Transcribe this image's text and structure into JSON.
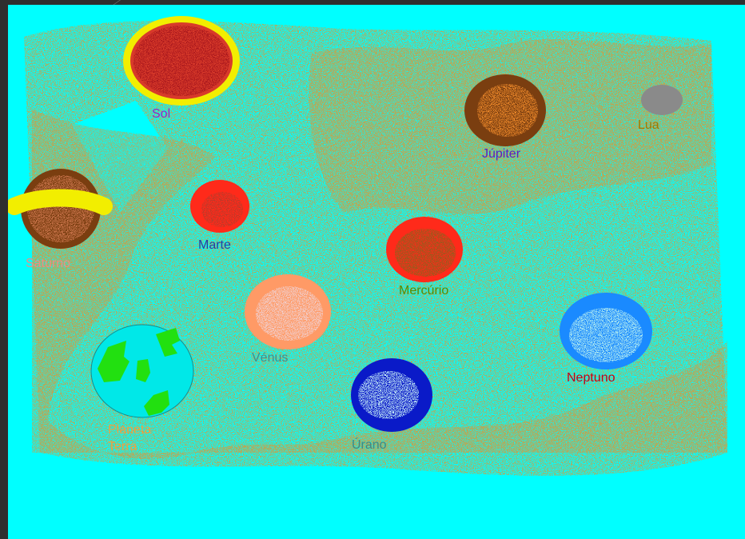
{
  "colors": {
    "background": "#00ffff",
    "dust": "#d79a3a",
    "sol_ring": "#f2ee00",
    "sol_core": "#d83a2a",
    "sol_label": "#a020c0",
    "lua": "#8a8a8a",
    "lua_label": "#a07a00",
    "jupiter": "#7a3e10",
    "jupiter_label": "#5a20c0",
    "saturno": "#7a3e10",
    "saturno_ring": "#f2ee00",
    "saturno_label": "#f08c82",
    "marte": "#ff2a1a",
    "marte_label": "#2a3ea0",
    "mercurio": "#ff2a1a",
    "mercurio_label": "#5a8a00",
    "venus": "#ff9a66",
    "venus_label": "#4a8a8a",
    "neptuno": "#1a8aff",
    "neptuno_label": "#c0001a",
    "urano": "#0a1ac8",
    "urano_label": "#3a8a8a",
    "terra": "#00e8e8",
    "terra_land": "#22e010",
    "terra_label": "#f0a040"
  },
  "planets": {
    "sol": {
      "label": "Sol"
    },
    "lua": {
      "label": "Lua"
    },
    "jupiter": {
      "label": "Júpiter"
    },
    "saturno": {
      "label": "Saturno"
    },
    "marte": {
      "label": "Marte"
    },
    "mercurio": {
      "label": "Mercúrio"
    },
    "venus": {
      "label": "Vénus"
    },
    "neptuno": {
      "label": "Neptuno"
    },
    "terra": {
      "label": "Planeta Terra"
    },
    "urano": {
      "label": "Úrano"
    }
  }
}
